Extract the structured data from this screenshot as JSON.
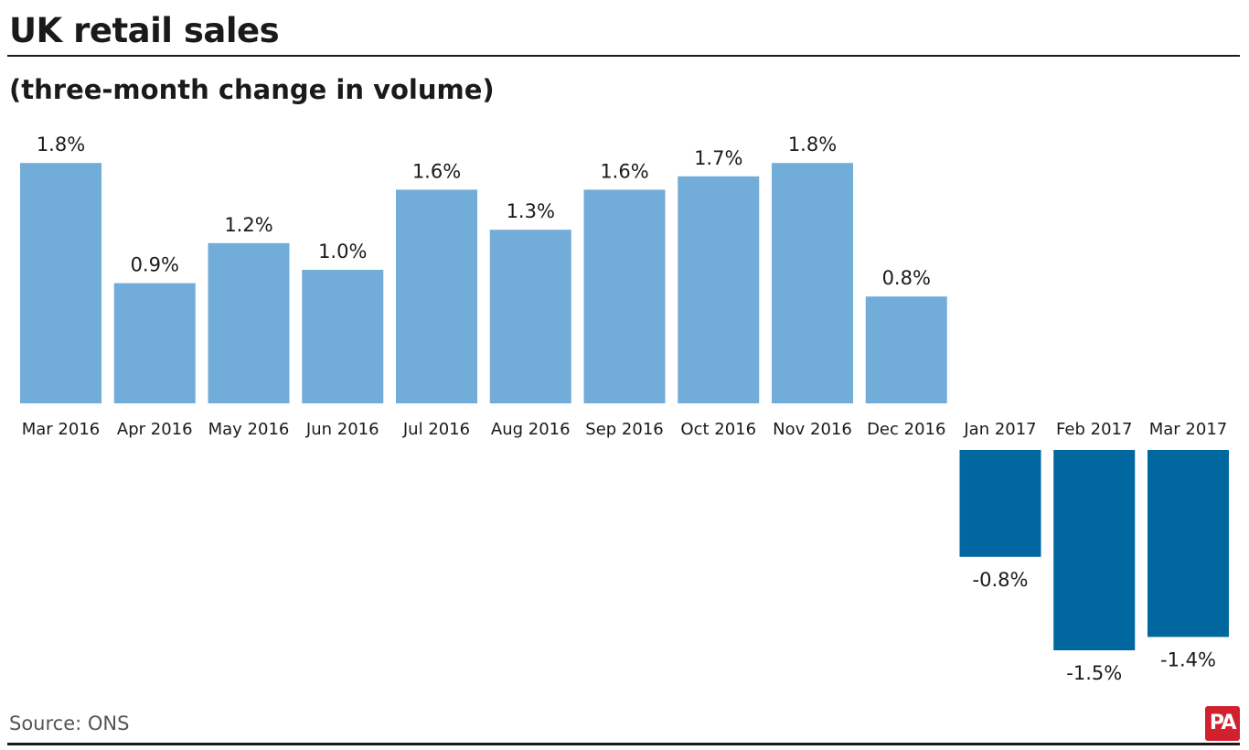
{
  "header": {
    "title": "UK retail sales",
    "subtitle": "(three-month change in volume)"
  },
  "footer": {
    "source": "Source: ONS",
    "logo_text": "PA"
  },
  "colors": {
    "positive": "#72acd8",
    "negative": "#00679f",
    "text": "#1a1a1a"
  },
  "chart_data": {
    "type": "bar",
    "title": "UK retail sales",
    "subtitle": "(three-month change in volume)",
    "xlabel": "",
    "ylabel": "",
    "categories": [
      "Mar 2016",
      "Apr 2016",
      "May 2016",
      "Jun 2016",
      "Jul 2016",
      "Aug 2016",
      "Sep 2016",
      "Oct 2016",
      "Nov 2016",
      "Dec 2016",
      "Jan 2017",
      "Feb 2017",
      "Mar 2017"
    ],
    "values": [
      1.8,
      0.9,
      1.2,
      1.0,
      1.6,
      1.3,
      1.6,
      1.7,
      1.8,
      0.8,
      -0.8,
      -1.5,
      -1.4
    ],
    "value_labels": [
      "1.8%",
      "0.9%",
      "1.2%",
      "1.0%",
      "1.6%",
      "1.3%",
      "1.6%",
      "1.7%",
      "1.8%",
      "0.8%",
      "-0.8%",
      "-1.5%",
      "-1.4%"
    ],
    "unit": "%",
    "ylim": [
      -1.5,
      1.8
    ],
    "grid": false,
    "legend": "none"
  }
}
